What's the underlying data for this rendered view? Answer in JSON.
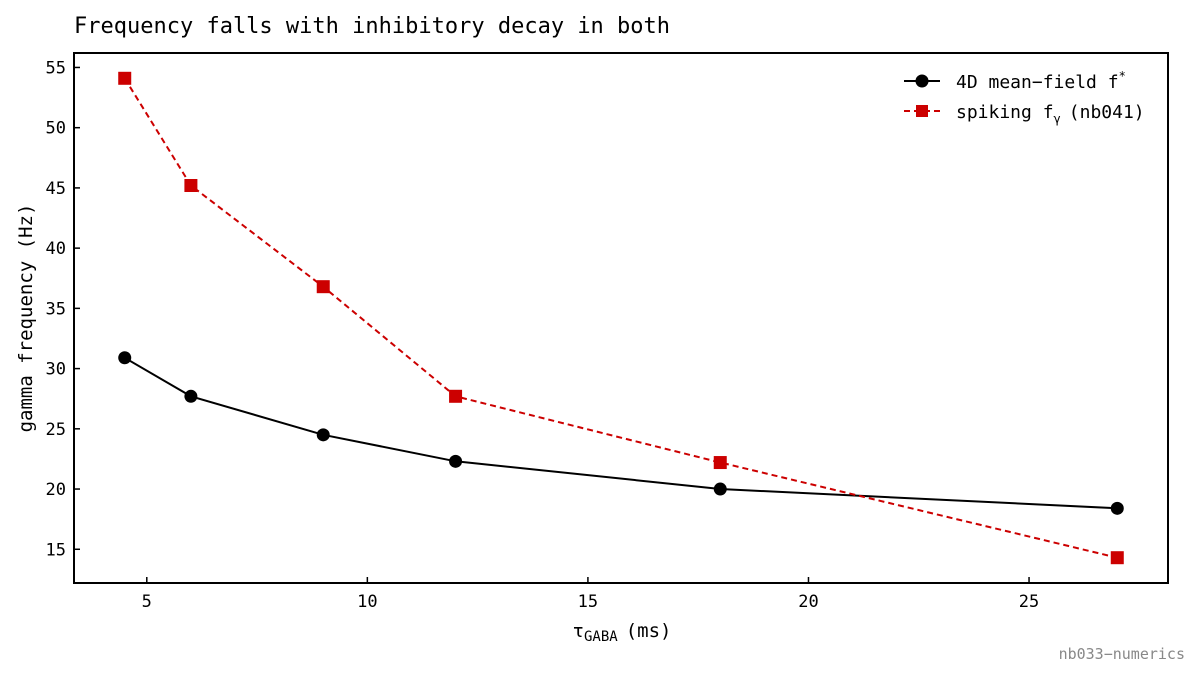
{
  "chart_data": {
    "type": "line",
    "title": "Frequency falls with inhibitory decay in both",
    "xlabel": {
      "main": "τ",
      "sub": "GABA",
      "unit": "(ms)"
    },
    "ylabel": "gamma frequency (Hz)",
    "xlim": [
      3.35,
      28.15
    ],
    "ylim": [
      12.2,
      56.2
    ],
    "xticks": [
      5,
      10,
      15,
      20,
      25
    ],
    "yticks": [
      15,
      20,
      25,
      30,
      35,
      40,
      45,
      50,
      55
    ],
    "grid": false,
    "legend_position": "top-right",
    "series": [
      {
        "legend_text": "4D mean−field f",
        "legend_sup": "*",
        "color": "#000000",
        "dash": "solid",
        "marker": "circle",
        "x": [
          4.5,
          6,
          9,
          12,
          18,
          27
        ],
        "y": [
          30.9,
          27.7,
          24.5,
          22.3,
          20.0,
          18.4
        ]
      },
      {
        "legend_text": "spiking f",
        "legend_sub": "γ",
        "legend_suffix": "(nb041)",
        "color": "#cc0000",
        "dash": "dashed",
        "marker": "square",
        "x": [
          4.5,
          6,
          9,
          12,
          18,
          27
        ],
        "y": [
          54.1,
          45.2,
          36.8,
          27.7,
          22.2,
          14.3
        ]
      }
    ]
  },
  "footer": "nb033−numerics"
}
